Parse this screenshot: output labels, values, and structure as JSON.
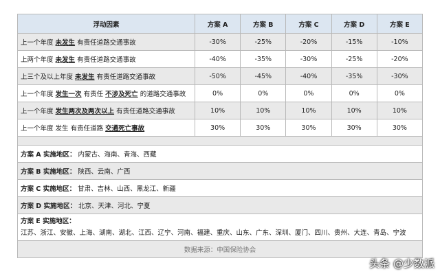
{
  "table": {
    "columns": [
      "浮动因素",
      "方案 A",
      "方案 B",
      "方案 C",
      "方案 D",
      "方案 E"
    ],
    "rows": [
      {
        "factor": [
          "上一个年度",
          "未发生",
          "有责任道路交通事故"
        ],
        "values": [
          "-30%",
          "-25%",
          "-20%",
          "-15%",
          "-10%"
        ]
      },
      {
        "factor": [
          "上两个年度",
          "未发生",
          "有责任道路交通事故"
        ],
        "values": [
          "-40%",
          "-35%",
          "-30%",
          "-25%",
          "-20%"
        ]
      },
      {
        "factor": [
          "上三个及以上年度",
          "未发生",
          "有责任道路交通事故"
        ],
        "values": [
          "-50%",
          "-45%",
          "-40%",
          "-35%",
          "-30%"
        ]
      },
      {
        "factor": [
          "上一个年度",
          "发生一次",
          "有责任",
          "不涉及死亡",
          "的道路交通事故"
        ],
        "values": [
          "0%",
          "0%",
          "0%",
          "0%",
          "0%"
        ]
      },
      {
        "factor": [
          "上一个年度",
          "发生两次及两次以上",
          "有责任道路交通事故"
        ],
        "values": [
          "10%",
          "10%",
          "10%",
          "10%",
          "10%"
        ]
      },
      {
        "factor": [
          "上一个年度",
          "发生",
          "有责任道路",
          "交通死亡事故"
        ],
        "values": [
          "30%",
          "30%",
          "30%",
          "30%",
          "30%"
        ]
      }
    ],
    "regions": [
      {
        "label": "方案 A 实施地区：",
        "areas": "内蒙古、海南、青海、西藏"
      },
      {
        "label": "方案 B 实施地区：",
        "areas": "陕西、云南、广西"
      },
      {
        "label": "方案 C 实施地区：",
        "areas": "甘肃、吉林、山西、黑龙江、新疆"
      },
      {
        "label": "方案 D 实施地区：",
        "areas": "北京、天津、河北、宁夏"
      },
      {
        "label": "方案 E 实施地区：",
        "areas": "江苏、浙江、安徽、上海、湖南、湖北、江西、辽宁、河南、福建、重庆、山东、广东、深圳、厦门、四川、贵州、大连、青岛、宁波"
      }
    ],
    "source": "数据来源：中国保险协会"
  },
  "watermark": "头条 @少数派"
}
